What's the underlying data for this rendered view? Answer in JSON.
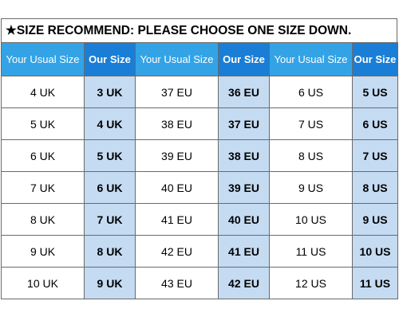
{
  "banner": {
    "star": "★",
    "text": "SIZE RECOMMEND: PLEASE CHOOSE ONE SIZE DOWN."
  },
  "colors": {
    "header_usual": "#33a3e6",
    "header_ours": "#1a7ed6",
    "ours_cell": "#c4dbf2"
  },
  "table": {
    "headers": [
      "Your Usual Size",
      "Our Size",
      "Your Usual Size",
      "Our Size",
      "Your Usual Size",
      "Our Size"
    ],
    "rows": [
      [
        "4 UK",
        "3 UK",
        "37 EU",
        "36 EU",
        "6 US",
        "5 US"
      ],
      [
        "5 UK",
        "4 UK",
        "38 EU",
        "37 EU",
        "7 US",
        "6 US"
      ],
      [
        "6 UK",
        "5 UK",
        "39 EU",
        "38 EU",
        "8 US",
        "7 US"
      ],
      [
        "7 UK",
        "6 UK",
        "40 EU",
        "39 EU",
        "9 US",
        "8 US"
      ],
      [
        "8 UK",
        "7 UK",
        "41 EU",
        "40 EU",
        "10 US",
        "9 US"
      ],
      [
        "9 UK",
        "8 UK",
        "42 EU",
        "41 EU",
        "11 US",
        "10 US"
      ],
      [
        "10 UK",
        "9 UK",
        "43 EU",
        "42 EU",
        "12 US",
        "11 US"
      ]
    ]
  }
}
